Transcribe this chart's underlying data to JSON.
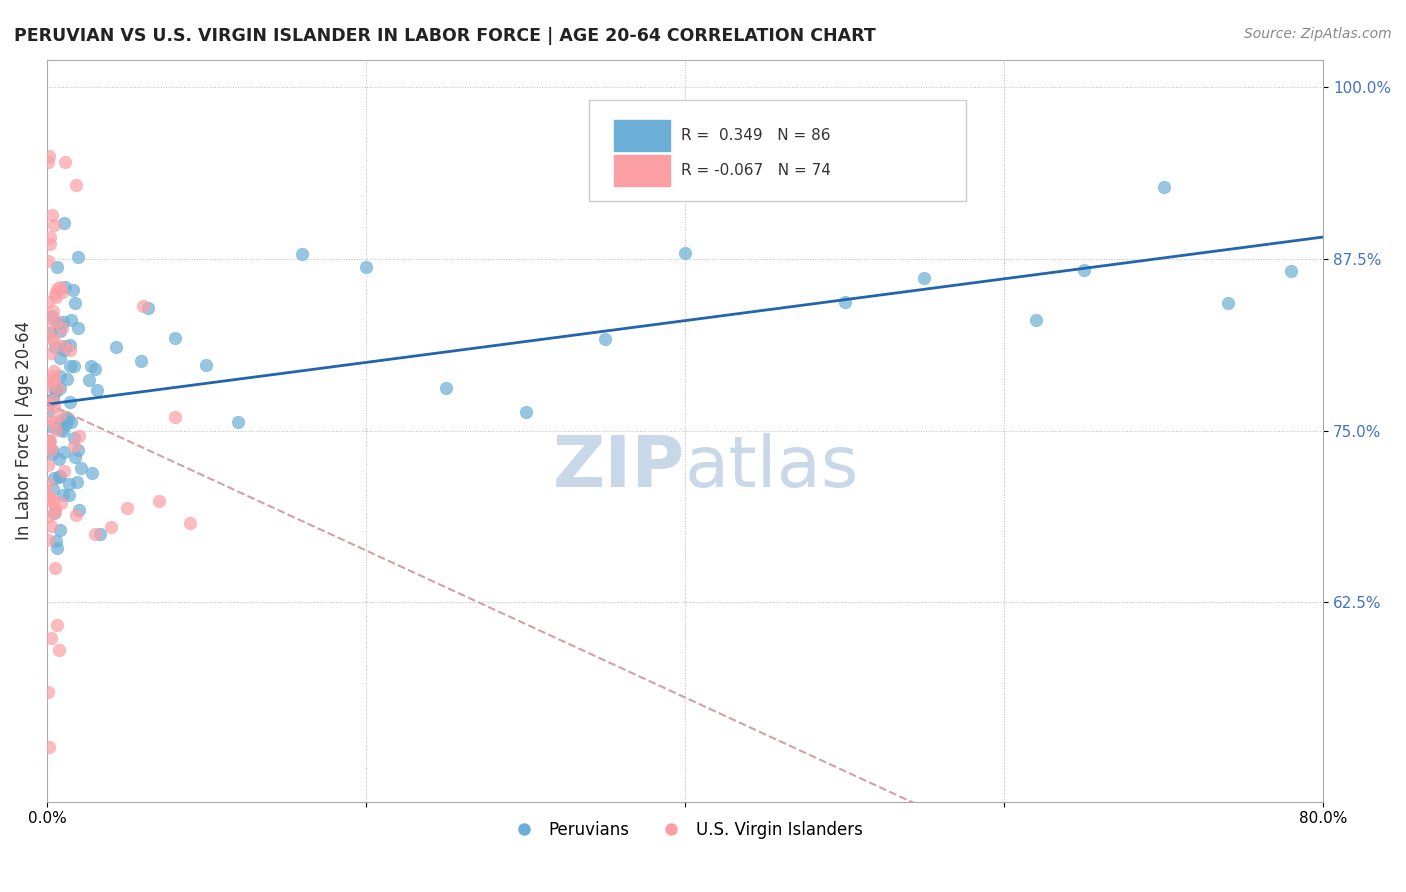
{
  "title": "PERUVIAN VS U.S. VIRGIN ISLANDER IN LABOR FORCE | AGE 20-64 CORRELATION CHART",
  "source": "Source: ZipAtlas.com",
  "ylabel": "In Labor Force | Age 20-64",
  "xlim": [
    0.0,
    80.0
  ],
  "ylim": [
    48.0,
    102.0
  ],
  "R_blue": 0.349,
  "N_blue": 86,
  "R_pink": -0.067,
  "N_pink": 74,
  "blue_color": "#6baed6",
  "pink_color": "#fc9fa4",
  "blue_line_color": "#2166ac",
  "pink_line_color": "#d4a0a8",
  "watermark_color": "#c8d8e8",
  "legend_label_blue": "Peruvians",
  "legend_label_pink": "U.S. Virgin Islanders"
}
